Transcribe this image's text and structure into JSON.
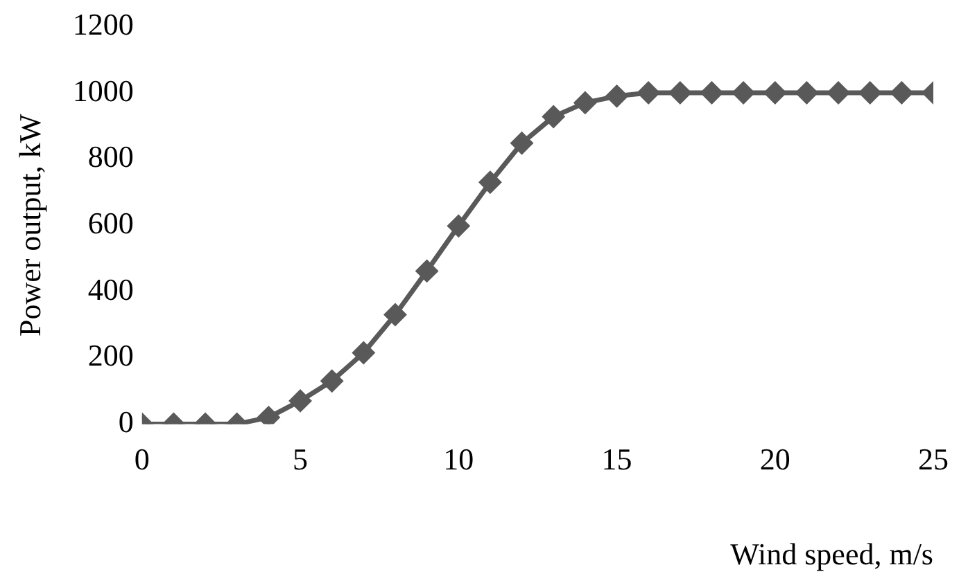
{
  "chart_data": {
    "type": "line",
    "xlabel": "Wind speed, m/s",
    "ylabel": "Power output, kW",
    "x": [
      0,
      1,
      2,
      3,
      4,
      5,
      6,
      7,
      8,
      9,
      10,
      11,
      12,
      13,
      14,
      15,
      16,
      17,
      18,
      19,
      20,
      21,
      22,
      23,
      24,
      25
    ],
    "series": [
      {
        "color": "#595959",
        "values": [
          0,
          0,
          0,
          0,
          20,
          70,
          130,
          215,
          330,
          462,
          598,
          730,
          848,
          928,
          970,
          990,
          1000,
          1000,
          1000,
          1000,
          1000,
          1000,
          1000,
          1000,
          1000,
          1000
        ]
      }
    ],
    "xlim": [
      0,
      25
    ],
    "xticks": [
      0,
      5,
      10,
      15,
      20,
      25
    ],
    "ylim": [
      0,
      1200
    ],
    "yticks": [
      0,
      200,
      400,
      600,
      800,
      1000,
      1200
    ],
    "grid": false,
    "legend": false,
    "marker": "diamond",
    "line_style": "solid"
  }
}
